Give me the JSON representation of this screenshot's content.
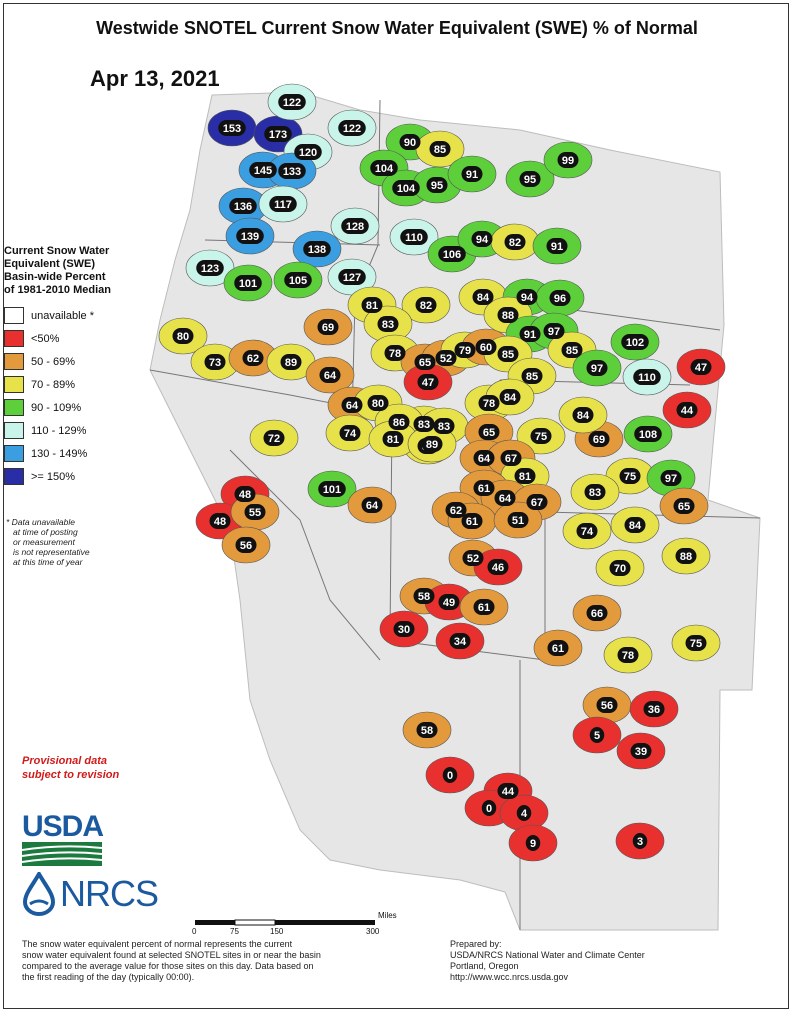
{
  "title": "Westwide SNOTEL Current Snow Water Equivalent (SWE) % of Normal",
  "date": "Apr 13, 2021",
  "legend": {
    "title_lines": [
      "Current Snow Water",
      "Equivalent (SWE)",
      "Basin-wide Percent",
      "of 1981-2010 Median"
    ],
    "items": [
      {
        "label": "unavailable *",
        "color": "#ffffff"
      },
      {
        "label": "<50%",
        "color": "#e8312f"
      },
      {
        "label": "50 - 69%",
        "color": "#e39a3c"
      },
      {
        "label": "70 - 89%",
        "color": "#e8e24a"
      },
      {
        "label": "90 - 109%",
        "color": "#5ccf3a"
      },
      {
        "label": "110 - 129%",
        "color": "#c9f4ea"
      },
      {
        "label": "130 - 149%",
        "color": "#3a9ee0"
      },
      {
        "label": ">= 150%",
        "color": "#2a2ea6"
      }
    ],
    "note_lines": [
      "*  Data unavailable",
      "at time of posting",
      "or measurement",
      "is not representative",
      "at this time of year"
    ]
  },
  "provisional_lines": [
    "Provisional data",
    "subject to revision"
  ],
  "logos": {
    "usda": "USDA",
    "nrcs": "NRCS"
  },
  "scale": {
    "unit": "Miles",
    "ticks": [
      "0",
      "75",
      "150",
      "300"
    ]
  },
  "footnote_lines": [
    "The snow water equivalent percent of normal represents the current",
    "snow water equivalent found at selected SNOTEL sites in or near the basin",
    "compared to the average value for those sites on this day. Data based on",
    "the first reading of the day (typically 00:00)."
  ],
  "prepared_lines": [
    "Prepared by:",
    "USDA/NRCS National Water and Climate Center",
    "Portland, Oregon",
    "http://www.wcc.nrcs.usda.gov"
  ],
  "basins": [
    {
      "value": 153,
      "color": "#2a2ea6"
    },
    {
      "value": 173,
      "color": "#2a2ea6"
    },
    {
      "value": 122,
      "color": "#c9f4ea"
    },
    {
      "value": 122,
      "color": "#c9f4ea"
    },
    {
      "value": 120,
      "color": "#c9f4ea"
    },
    {
      "value": 145,
      "color": "#3a9ee0"
    },
    {
      "value": 133,
      "color": "#3a9ee0"
    },
    {
      "value": 136,
      "color": "#3a9ee0"
    },
    {
      "value": 117,
      "color": "#c9f4ea"
    },
    {
      "value": 139,
      "color": "#3a9ee0"
    },
    {
      "value": 138,
      "color": "#3a9ee0"
    },
    {
      "value": 128,
      "color": "#c9f4ea"
    },
    {
      "value": 123,
      "color": "#c9f4ea"
    },
    {
      "value": 101,
      "color": "#5ccf3a"
    },
    {
      "value": 105,
      "color": "#5ccf3a"
    },
    {
      "value": 127,
      "color": "#c9f4ea"
    },
    {
      "value": 110,
      "color": "#c9f4ea"
    },
    {
      "value": 90,
      "color": "#5ccf3a"
    },
    {
      "value": 85,
      "color": "#e8e24a"
    },
    {
      "value": 104,
      "color": "#5ccf3a"
    },
    {
      "value": 104,
      "color": "#5ccf3a"
    },
    {
      "value": 95,
      "color": "#5ccf3a"
    },
    {
      "value": 91,
      "color": "#5ccf3a"
    },
    {
      "value": 95,
      "color": "#5ccf3a"
    },
    {
      "value": 99,
      "color": "#5ccf3a"
    },
    {
      "value": 106,
      "color": "#5ccf3a"
    },
    {
      "value": 94,
      "color": "#5ccf3a"
    },
    {
      "value": 82,
      "color": "#e8e24a"
    },
    {
      "value": 91,
      "color": "#5ccf3a"
    },
    {
      "value": 84,
      "color": "#e8e24a"
    },
    {
      "value": 94,
      "color": "#5ccf3a"
    },
    {
      "value": 96,
      "color": "#5ccf3a"
    },
    {
      "value": 82,
      "color": "#e8e24a"
    },
    {
      "value": 81,
      "color": "#e8e24a"
    },
    {
      "value": 83,
      "color": "#e8e24a"
    },
    {
      "value": 88,
      "color": "#e8e24a"
    },
    {
      "value": 80,
      "color": "#e8e24a"
    },
    {
      "value": 73,
      "color": "#e8e24a"
    },
    {
      "value": 62,
      "color": "#e39a3c"
    },
    {
      "value": 89,
      "color": "#e8e24a"
    },
    {
      "value": 69,
      "color": "#e39a3c"
    },
    {
      "value": 78,
      "color": "#e8e24a"
    },
    {
      "value": 65,
      "color": "#e39a3c"
    },
    {
      "value": 52,
      "color": "#e39a3c"
    },
    {
      "value": 79,
      "color": "#e8e24a"
    },
    {
      "value": 60,
      "color": "#e39a3c"
    },
    {
      "value": 91,
      "color": "#5ccf3a"
    },
    {
      "value": 97,
      "color": "#5ccf3a"
    },
    {
      "value": 85,
      "color": "#e8e24a"
    },
    {
      "value": 85,
      "color": "#e8e24a"
    },
    {
      "value": 102,
      "color": "#5ccf3a"
    },
    {
      "value": 97,
      "color": "#5ccf3a"
    },
    {
      "value": 110,
      "color": "#c9f4ea"
    },
    {
      "value": 47,
      "color": "#e8312f"
    },
    {
      "value": 64,
      "color": "#e39a3c"
    },
    {
      "value": 47,
      "color": "#e8312f"
    },
    {
      "value": 85,
      "color": "#e8e24a"
    },
    {
      "value": 44,
      "color": "#e8312f"
    },
    {
      "value": 64,
      "color": "#e39a3c"
    },
    {
      "value": 80,
      "color": "#e8e24a"
    },
    {
      "value": 78,
      "color": "#e8e24a"
    },
    {
      "value": 84,
      "color": "#e8e24a"
    },
    {
      "value": 83,
      "color": "#e8e24a"
    },
    {
      "value": 86,
      "color": "#e8e24a"
    },
    {
      "value": 83,
      "color": "#e8e24a"
    },
    {
      "value": 89,
      "color": "#e8e24a"
    },
    {
      "value": 72,
      "color": "#e8e24a"
    },
    {
      "value": 74,
      "color": "#e8e24a"
    },
    {
      "value": 81,
      "color": "#e8e24a"
    },
    {
      "value": 89,
      "color": "#e8e24a"
    },
    {
      "value": 65,
      "color": "#e39a3c"
    },
    {
      "value": 75,
      "color": "#e8e24a"
    },
    {
      "value": 69,
      "color": "#e39a3c"
    },
    {
      "value": 108,
      "color": "#5ccf3a"
    },
    {
      "value": 64,
      "color": "#e39a3c"
    },
    {
      "value": 67,
      "color": "#e39a3c"
    },
    {
      "value": 81,
      "color": "#e8e24a"
    },
    {
      "value": 75,
      "color": "#e8e24a"
    },
    {
      "value": 84,
      "color": "#e8e24a"
    },
    {
      "value": 83,
      "color": "#e8e24a"
    },
    {
      "value": 97,
      "color": "#5ccf3a"
    },
    {
      "value": 48,
      "color": "#e8312f"
    },
    {
      "value": 48,
      "color": "#e8312f"
    },
    {
      "value": 55,
      "color": "#e39a3c"
    },
    {
      "value": 101,
      "color": "#5ccf3a"
    },
    {
      "value": 64,
      "color": "#e39a3c"
    },
    {
      "value": 61,
      "color": "#e39a3c"
    },
    {
      "value": 64,
      "color": "#e39a3c"
    },
    {
      "value": 67,
      "color": "#e39a3c"
    },
    {
      "value": 62,
      "color": "#e39a3c"
    },
    {
      "value": 61,
      "color": "#e39a3c"
    },
    {
      "value": 51,
      "color": "#e39a3c"
    },
    {
      "value": 65,
      "color": "#e39a3c"
    },
    {
      "value": 56,
      "color": "#e39a3c"
    },
    {
      "value": 74,
      "color": "#e8e24a"
    },
    {
      "value": 84,
      "color": "#e8e24a"
    },
    {
      "value": 88,
      "color": "#e8e24a"
    },
    {
      "value": 52,
      "color": "#e39a3c"
    },
    {
      "value": 46,
      "color": "#e8312f"
    },
    {
      "value": 70,
      "color": "#e8e24a"
    },
    {
      "value": 58,
      "color": "#e39a3c"
    },
    {
      "value": 49,
      "color": "#e8312f"
    },
    {
      "value": 61,
      "color": "#e39a3c"
    },
    {
      "value": 66,
      "color": "#e39a3c"
    },
    {
      "value": 30,
      "color": "#e8312f"
    },
    {
      "value": 34,
      "color": "#e8312f"
    },
    {
      "value": 61,
      "color": "#e39a3c"
    },
    {
      "value": 78,
      "color": "#e8e24a"
    },
    {
      "value": 75,
      "color": "#e8e24a"
    },
    {
      "value": 56,
      "color": "#e39a3c"
    },
    {
      "value": 36,
      "color": "#e8312f"
    },
    {
      "value": 58,
      "color": "#e39a3c"
    },
    {
      "value": 5,
      "color": "#e8312f"
    },
    {
      "value": 39,
      "color": "#e8312f"
    },
    {
      "value": 0,
      "color": "#e8312f"
    },
    {
      "value": 44,
      "color": "#e8312f"
    },
    {
      "value": 0,
      "color": "#e8312f"
    },
    {
      "value": 4,
      "color": "#e8312f"
    },
    {
      "value": 9,
      "color": "#e8312f"
    },
    {
      "value": 3,
      "color": "#e8312f"
    }
  ]
}
